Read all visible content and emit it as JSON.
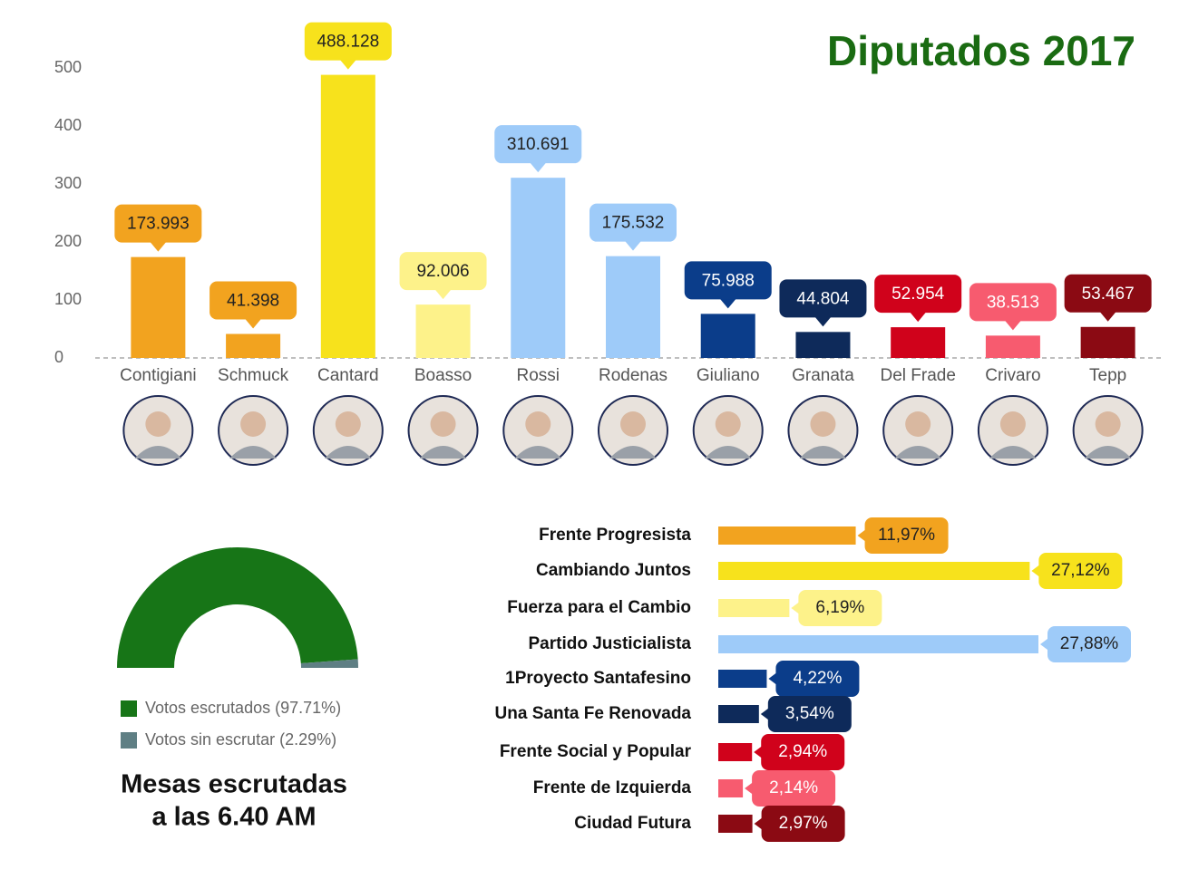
{
  "title": "Diputados 2017",
  "chart_data": [
    {
      "type": "bar",
      "categories": [
        "Contigiani",
        "Schmuck",
        "Cantard",
        "Boasso",
        "Rossi",
        "Rodenas",
        "Giuliano",
        "Granata",
        "Del Frade",
        "Crivaro",
        "Tepp"
      ],
      "values": [
        173.993,
        41.398,
        488.128,
        92.006,
        310.691,
        175.532,
        75.988,
        44.804,
        52.954,
        38.513,
        53.467
      ],
      "colors": [
        "#f2a31f",
        "#f2a31f",
        "#f7e21c",
        "#fdf28a",
        "#9ecbf9",
        "#9ecbf9",
        "#0b3d8a",
        "#0e2a5a",
        "#d0021b",
        "#f75b6f",
        "#8b0a13"
      ],
      "ylim": [
        0,
        500
      ],
      "yticks": [
        0,
        100,
        200,
        300,
        400,
        500
      ]
    },
    {
      "type": "pie",
      "categories": [
        "Votos escrutados (97.71%)",
        "Votos sin escrutar (2.29%)"
      ],
      "values": [
        97.71,
        2.29
      ],
      "colors": [
        "#177517",
        "#5f7f84"
      ],
      "caption": [
        "Mesas escrutadas",
        "a las 6.40 AM"
      ]
    },
    {
      "type": "hbar",
      "categories": [
        "Frente Progresista",
        "Cambiando Juntos",
        "Fuerza para el Cambio",
        "Partido Justicialista",
        "1Proyecto Santafesino",
        "Una Santa Fe Renovada",
        "Frente Social y Popular",
        "Frente de Izquierda",
        "Ciudad Futura"
      ],
      "values": [
        11.97,
        27.12,
        6.19,
        27.88,
        4.22,
        3.54,
        2.94,
        2.14,
        2.97
      ],
      "value_labels": [
        "11,97%",
        "27,12%",
        "6,19%",
        "27,88%",
        "4,22%",
        "3,54%",
        "2,94%",
        "2,14%",
        "2,97%"
      ],
      "colors": [
        "#f2a31f",
        "#f7e21c",
        "#fdf28a",
        "#9ecbf9",
        "#0b3d8a",
        "#0e2a5a",
        "#d0021b",
        "#f75b6f",
        "#8b0a13"
      ]
    }
  ]
}
